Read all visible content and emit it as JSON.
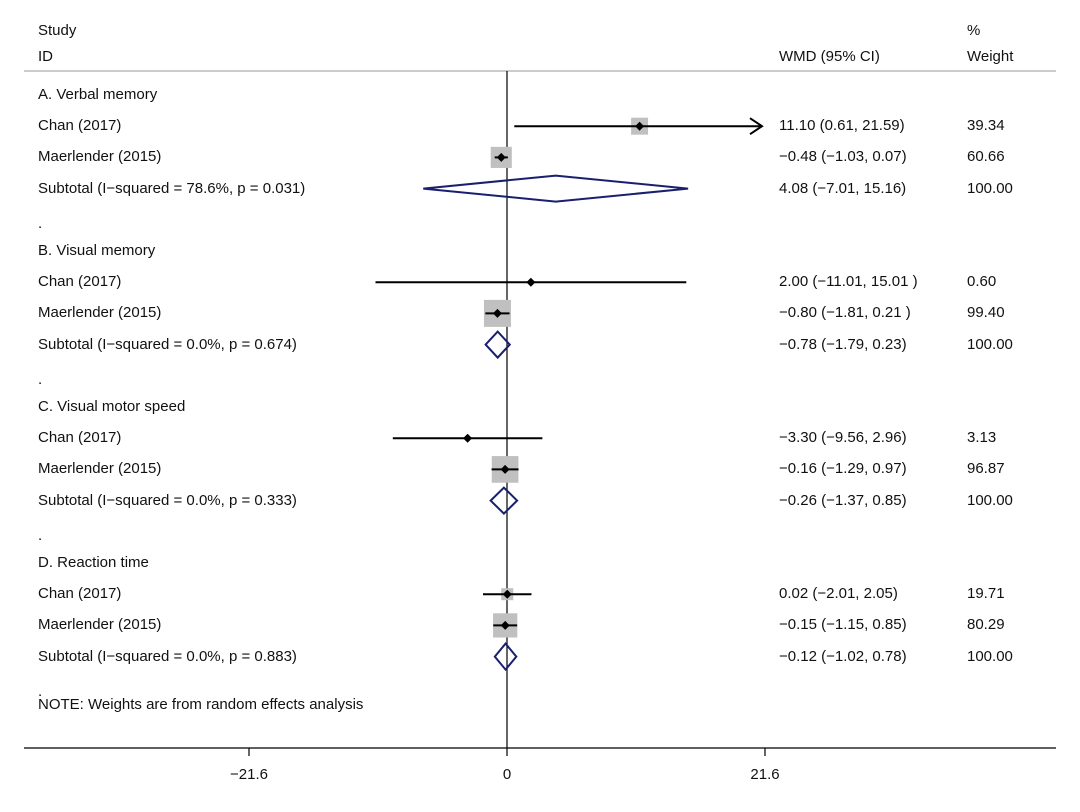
{
  "header": {
    "study_line1": "Study",
    "study_line2": "ID",
    "effect_label": "WMD (95% CI)",
    "weight_line1": "%",
    "weight_line2": "Weight"
  },
  "note": "NOTE: Weights are from random effects analysis",
  "colors": {
    "study_marker": "#000000",
    "weight_box": "#c0c0c0",
    "diamond": "#1a1f6e"
  },
  "chart_data": {
    "type": "forest",
    "measure": "WMD (95% CI)",
    "xaxis": {
      "ticks": [
        -21.6,
        0,
        21.6
      ],
      "tick_labels": [
        "−21.6",
        "0",
        "21.6"
      ],
      "range": [
        -40.9,
        45.4
      ],
      "reference_line": 0
    },
    "rows": [
      {
        "kind": "group",
        "label": "A. Verbal memory"
      },
      {
        "kind": "study",
        "label": "Chan (2017)",
        "est": 11.1,
        "lo": 0.61,
        "hi": 21.59,
        "weight": 39.34,
        "ci_text": "11.10 (0.61, 21.59)",
        "weight_text": "39.34",
        "arrow_right": true
      },
      {
        "kind": "study",
        "label": "Maerlender (2015)",
        "est": -0.48,
        "lo": -1.03,
        "hi": 0.07,
        "weight": 60.66,
        "ci_text": "−0.48 (−1.03, 0.07)",
        "weight_text": "60.66"
      },
      {
        "kind": "subtotal",
        "label": "Subtotal  (I−squared = 78.6%, p = 0.031)",
        "est": 4.08,
        "lo": -7.01,
        "hi": 15.16,
        "ci_text": "4.08 (−7.01, 15.16)",
        "weight_text": "100.00"
      },
      {
        "kind": "dot",
        "label": "."
      },
      {
        "kind": "group",
        "label": "B. Visual memory"
      },
      {
        "kind": "study",
        "label": "Chan (2017)",
        "est": 2.0,
        "lo": -11.01,
        "hi": 15.01,
        "weight": 0.6,
        "ci_text": "2.00 (−11.01, 15.01 )",
        "weight_text": "0.60"
      },
      {
        "kind": "study",
        "label": "Maerlender (2015)",
        "est": -0.8,
        "lo": -1.81,
        "hi": 0.21,
        "weight": 99.4,
        "ci_text": "−0.80 (−1.81, 0.21 )",
        "weight_text": "99.40"
      },
      {
        "kind": "subtotal",
        "label": "Subtotal  (I−squared = 0.0%, p = 0.674)",
        "est": -0.78,
        "lo": -1.79,
        "hi": 0.23,
        "ci_text": "−0.78 (−1.79, 0.23)",
        "weight_text": "100.00"
      },
      {
        "kind": "dot",
        "label": "."
      },
      {
        "kind": "group",
        "label": "C. Visual motor speed"
      },
      {
        "kind": "study",
        "label": "Chan (2017)",
        "est": -3.3,
        "lo": -9.56,
        "hi": 2.96,
        "weight": 3.13,
        "ci_text": "−3.30 (−9.56, 2.96)",
        "weight_text": "3.13"
      },
      {
        "kind": "study",
        "label": "Maerlender (2015)",
        "est": -0.16,
        "lo": -1.29,
        "hi": 0.97,
        "weight": 96.87,
        "ci_text": "−0.16 (−1.29, 0.97)",
        "weight_text": "96.87"
      },
      {
        "kind": "subtotal",
        "label": "Subtotal  (I−squared = 0.0%, p = 0.333)",
        "est": -0.26,
        "lo": -1.37,
        "hi": 0.85,
        "ci_text": "−0.26 (−1.37, 0.85)",
        "weight_text": "100.00"
      },
      {
        "kind": "dot",
        "label": "."
      },
      {
        "kind": "group",
        "label": "D. Reaction time"
      },
      {
        "kind": "study",
        "label": "Chan (2017)",
        "est": 0.02,
        "lo": -2.01,
        "hi": 2.05,
        "weight": 19.71,
        "ci_text": "0.02 (−2.01, 2.05)",
        "weight_text": "19.71"
      },
      {
        "kind": "study",
        "label": "Maerlender (2015)",
        "est": -0.15,
        "lo": -1.15,
        "hi": 0.85,
        "weight": 80.29,
        "ci_text": "−0.15 (−1.15, 0.85)",
        "weight_text": "80.29"
      },
      {
        "kind": "subtotal",
        "label": "Subtotal  (I−squared = 0.0%, p = 0.883)",
        "est": -0.12,
        "lo": -1.02,
        "hi": 0.78,
        "ci_text": "−0.12 (−1.02, 0.78)",
        "weight_text": "100.00"
      },
      {
        "kind": "dot",
        "label": "."
      }
    ]
  }
}
